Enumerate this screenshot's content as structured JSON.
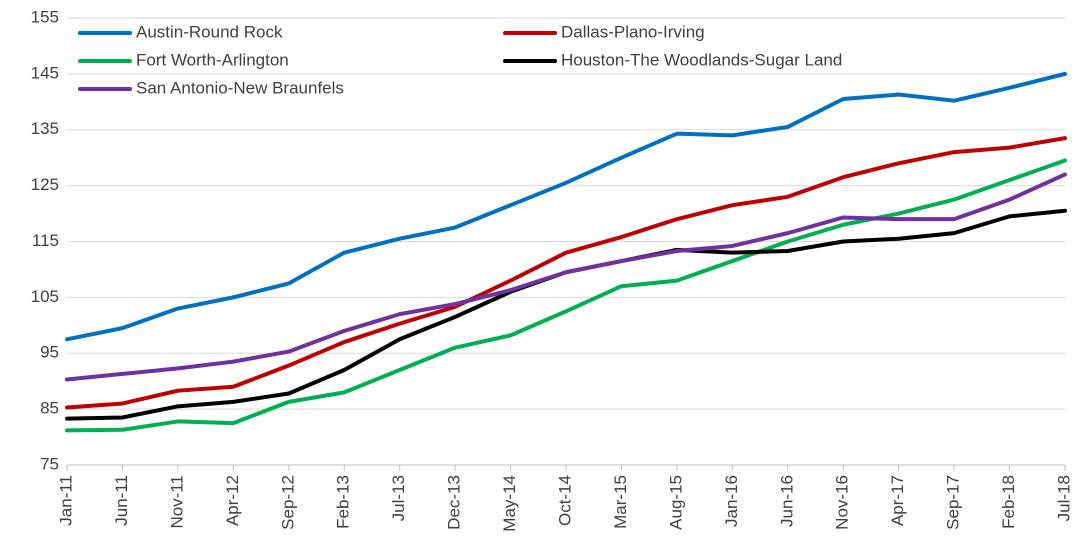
{
  "chart_data": {
    "type": "line",
    "categories": [
      "Jan-11",
      "Jun-11",
      "Nov-11",
      "Apr-12",
      "Sep-12",
      "Feb-13",
      "Jul-13",
      "Dec-13",
      "May-14",
      "Oct-14",
      "Mar-15",
      "Aug-15",
      "Jan-16",
      "Jun-16",
      "Nov-16",
      "Apr-17",
      "Sep-17",
      "Feb-18",
      "Jul-18"
    ],
    "series": [
      {
        "name": "Austin-Round Rock",
        "color": "#0070c0",
        "values": [
          97.5,
          99.5,
          103,
          105,
          107.5,
          113,
          115.5,
          117.5,
          121.5,
          125.5,
          130,
          134.3,
          134,
          135.5,
          140.5,
          141.3,
          140.2,
          142.5,
          145
        ]
      },
      {
        "name": "Dallas-Plano-Irving",
        "color": "#c00000",
        "values": [
          85.3,
          86,
          88.3,
          89,
          92.8,
          97,
          100.3,
          103.3,
          108,
          113,
          115.8,
          119,
          121.5,
          123,
          126.5,
          129,
          131,
          131.8,
          133.5
        ]
      },
      {
        "name": "Fort Worth-Arlington",
        "color": "#00b050",
        "values": [
          81.2,
          81.3,
          82.8,
          82.5,
          86.3,
          88,
          92,
          96,
          98.2,
          102.5,
          107,
          108,
          111.5,
          115,
          118,
          120,
          122.5,
          126,
          129.5
        ]
      },
      {
        "name": "Houston-The Woodlands-Sugar Land",
        "color": "#000000",
        "values": [
          83.3,
          83.5,
          85.5,
          86.3,
          87.8,
          92,
          97.5,
          101.5,
          106,
          109.5,
          111.5,
          113.5,
          113,
          113.3,
          115,
          115.5,
          116.5,
          119.5,
          120.5
        ]
      },
      {
        "name": "San Antonio-New Braunfels",
        "color": "#7030a0",
        "values": [
          90.3,
          91.3,
          92.3,
          93.5,
          95.3,
          99,
          102,
          103.8,
          106.3,
          109.5,
          111.5,
          113.3,
          114.2,
          116.5,
          119.3,
          119,
          119,
          122.5,
          127
        ]
      }
    ],
    "ylim": [
      75,
      155
    ],
    "yticks": [
      75,
      85,
      95,
      105,
      115,
      125,
      135,
      145,
      155
    ],
    "grid": true
  }
}
